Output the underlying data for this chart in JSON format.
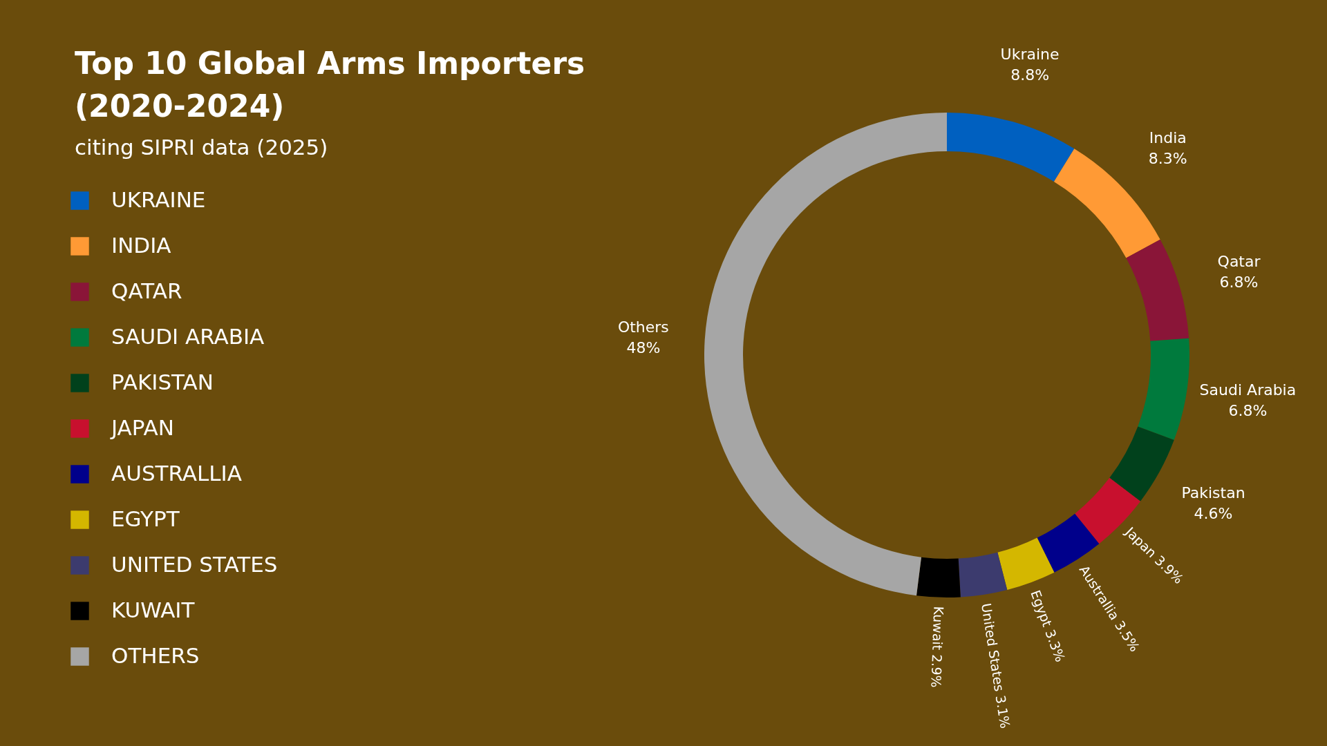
{
  "chart_data": {
    "type": "donut",
    "title": "Top 10 Global Arms Importers (2020-2024)",
    "subtitle": "citing SIPRI data (2025)",
    "categories": [
      "UKRAINE",
      "INDIA",
      "QATAR",
      "SAUDI ARABIA",
      "PAKISTAN",
      "JAPAN",
      "AUSTRALLIA",
      "EGYPT",
      "UNITED STATES",
      "KUWAIT",
      "OTHERS"
    ],
    "values": [
      8.8,
      8.3,
      6.8,
      6.8,
      4.6,
      3.9,
      3.5,
      3.3,
      3.1,
      2.9,
      48
    ],
    "value_labels": [
      "Ukraine 8.8%",
      "India 8.3%",
      "Qatar 6.8%",
      "Saudi Arabia 6.8%",
      "Pakistan 4.6%",
      "Japan 3.9%",
      "Australlia 3.5%",
      "Egypt 3.3%",
      "United States 3.1%",
      "Kuwait 2.9%",
      "Others 48%"
    ],
    "colors": [
      "#0060c0",
      "#ff9a35",
      "#8a1538",
      "#007a3d",
      "#01411c",
      "#c8102e",
      "#00008b",
      "#d4b700",
      "#3c3b6e",
      "#000000",
      "#a6a6a6"
    ],
    "legend": "left"
  }
}
